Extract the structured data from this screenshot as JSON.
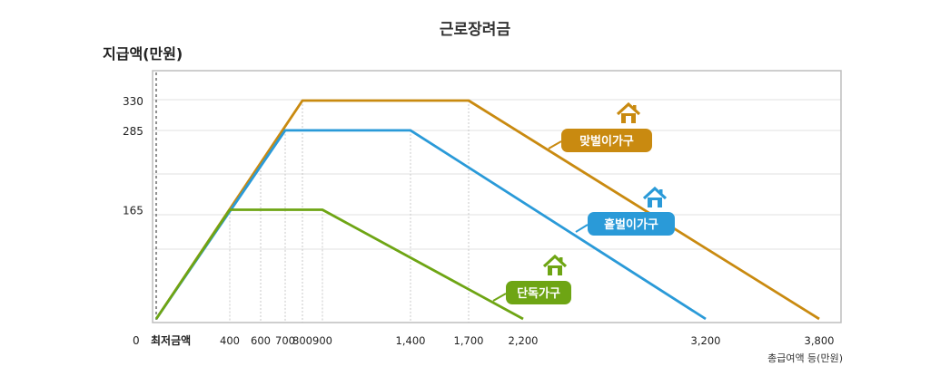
{
  "chart_data": {
    "type": "line",
    "title": "근로장려금",
    "ylabel": "지급액(만원)",
    "xlabel": "총급여액 등(만원)",
    "x_origin_labels": [
      "0",
      "최저금액"
    ],
    "x_ticks": [
      "400",
      "600",
      "700",
      "800",
      "900",
      "1,400",
      "1,700",
      "2,200",
      "3,200",
      "3,800"
    ],
    "y_ticks": [
      "330",
      "285",
      "165"
    ],
    "grid": true,
    "series": [
      {
        "name": "맞벌이가구",
        "color": "#c98a10",
        "points": [
          [
            0,
            0
          ],
          [
            800,
            330
          ],
          [
            1700,
            330
          ],
          [
            3800,
            0
          ]
        ]
      },
      {
        "name": "홑벌이가구",
        "color": "#2a9ad8",
        "points": [
          [
            0,
            0
          ],
          [
            700,
            285
          ],
          [
            1400,
            285
          ],
          [
            3200,
            0
          ]
        ]
      },
      {
        "name": "단독가구",
        "color": "#6ea514",
        "points": [
          [
            0,
            0
          ],
          [
            400,
            165
          ],
          [
            900,
            165
          ],
          [
            2200,
            0
          ]
        ]
      }
    ]
  }
}
